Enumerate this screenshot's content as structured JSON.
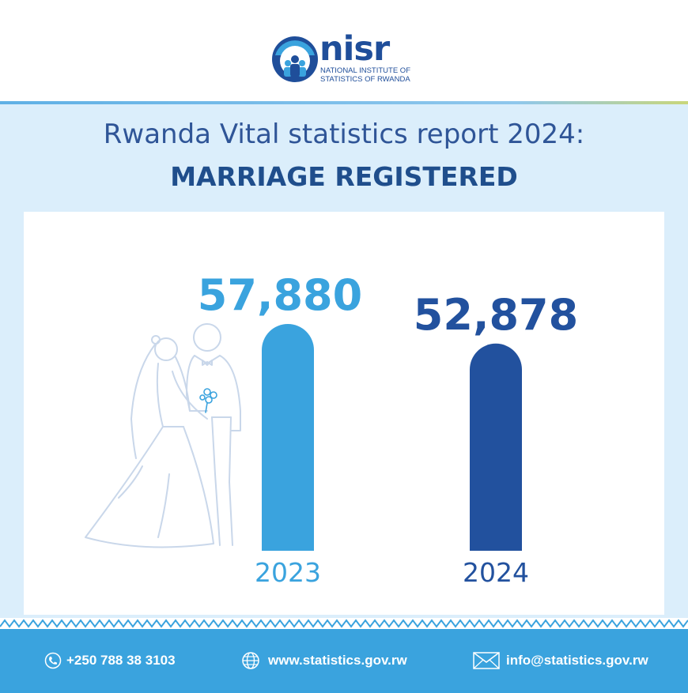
{
  "logo": {
    "name": "nisr",
    "subtitle_line1": "NATIONAL INSTITUTE OF",
    "subtitle_line2": "STATISTICS OF RWANDA"
  },
  "title": {
    "line1": "Rwanda Vital statistics report 2024:",
    "line2": "MARRIAGE REGISTERED"
  },
  "chart_data": {
    "type": "bar",
    "categories": [
      "2023",
      "2024"
    ],
    "values": [
      57880,
      52878
    ],
    "value_labels": [
      "57,880",
      "52,878"
    ],
    "colors": [
      "#3aa3de",
      "#22519e"
    ],
    "grid": false
  },
  "footer": {
    "phone": "+250 788 38 3103",
    "website": "www.statistics.gov.rw",
    "email": "info@statistics.gov.rw",
    "icons": [
      "phone-icon",
      "globe-icon",
      "mail-icon"
    ]
  },
  "colors": {
    "primary_blue": "#1f4e8c",
    "light_blue": "#3aa3de",
    "panel_bg": "#dbeefb"
  }
}
